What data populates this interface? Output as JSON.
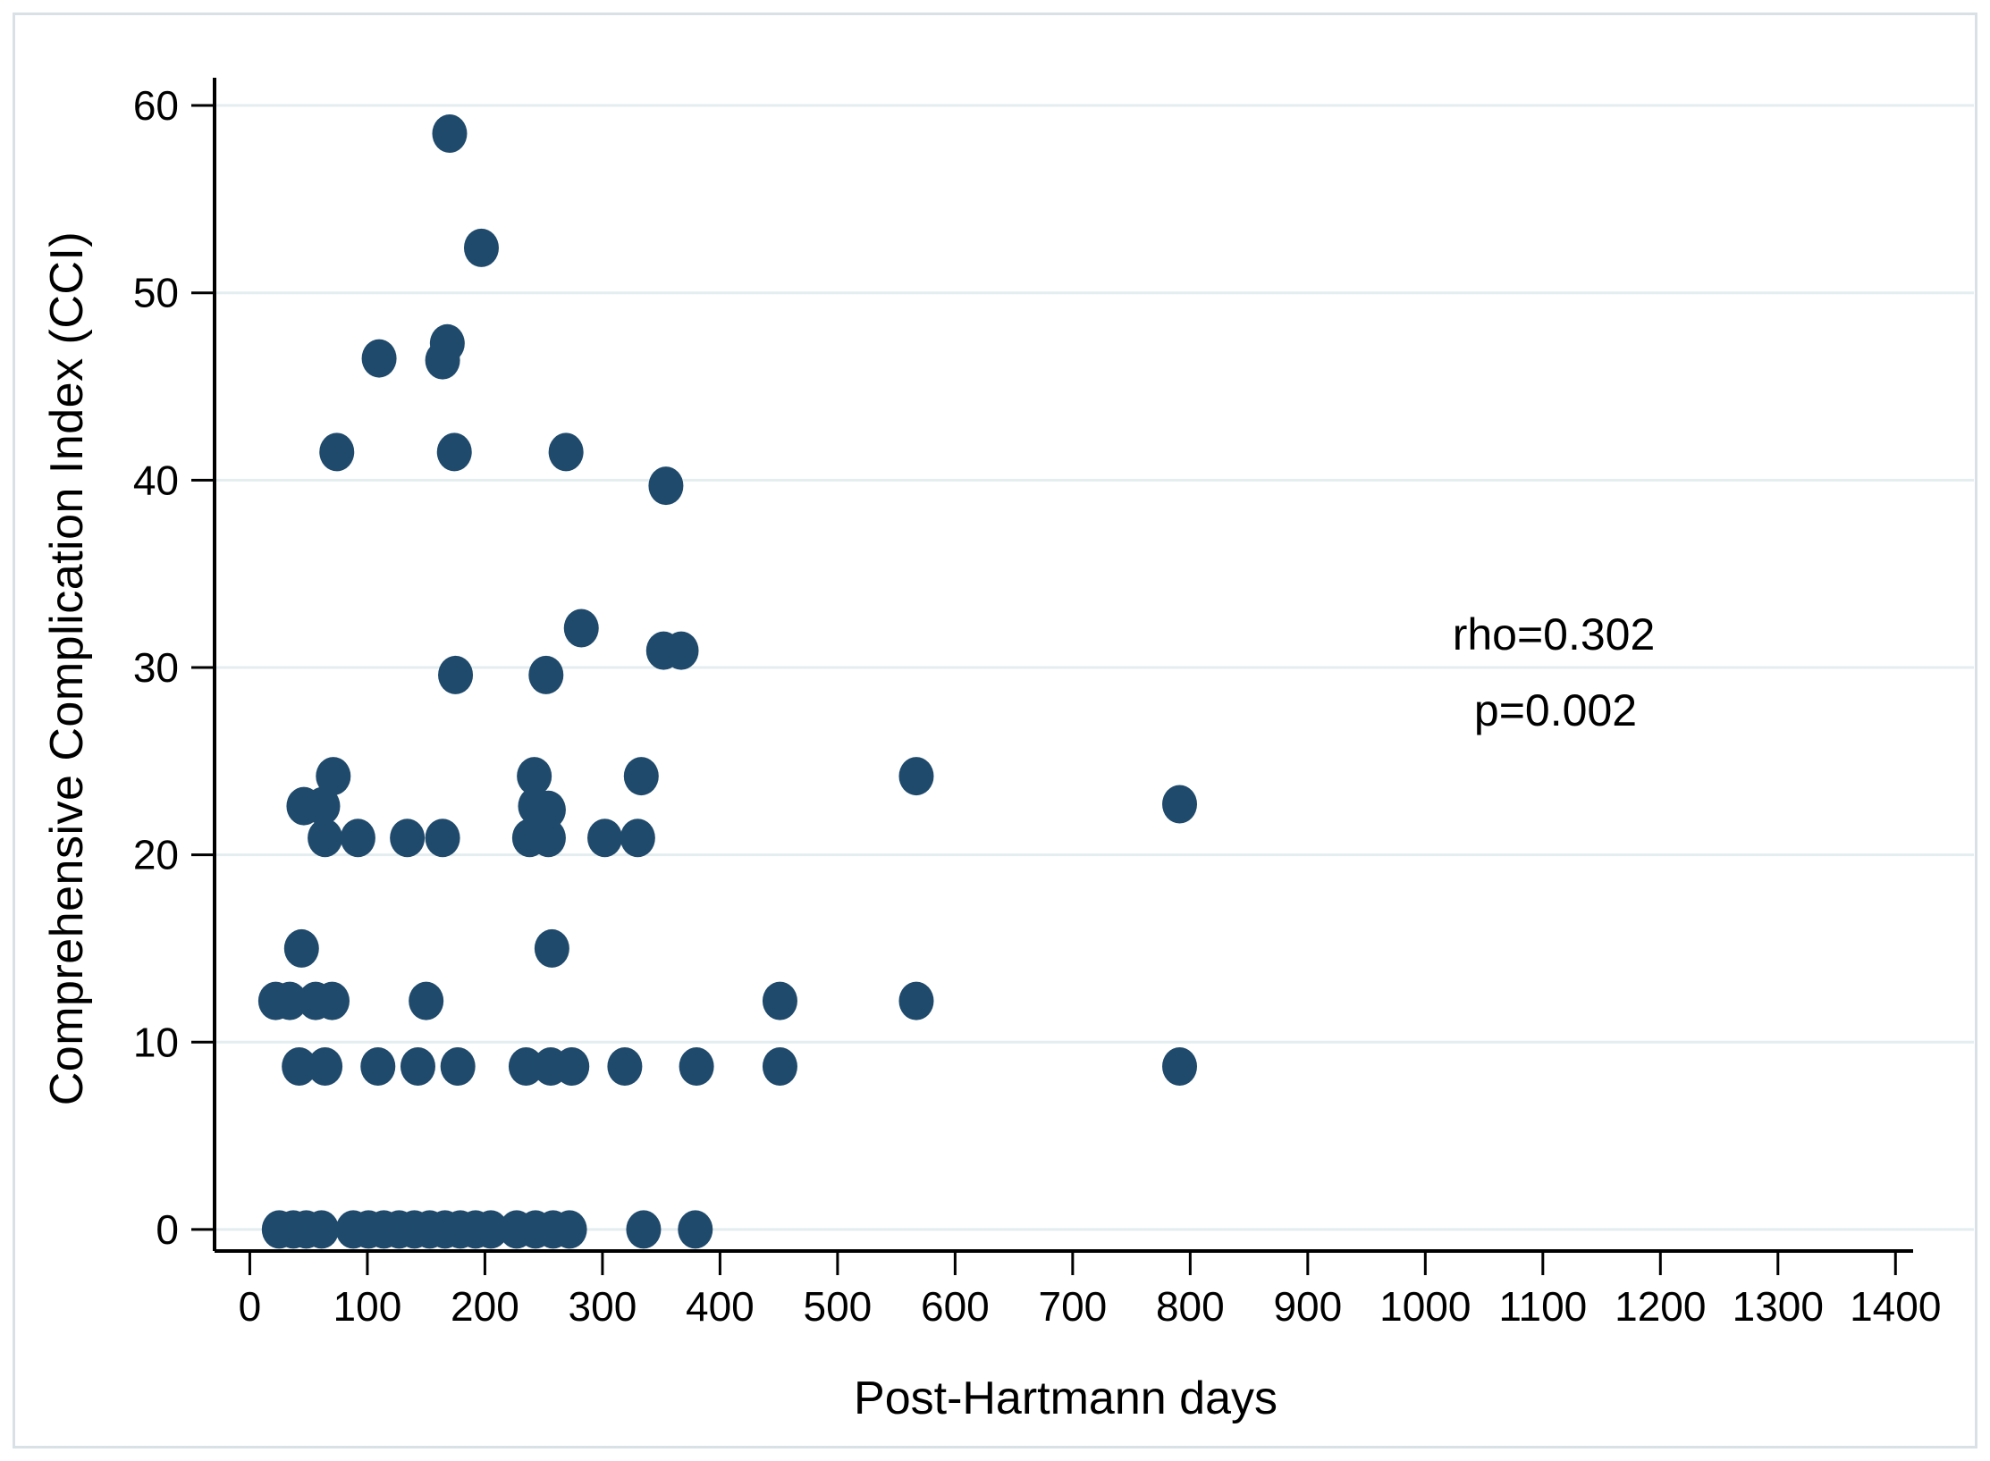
{
  "figure": {
    "background_color": "#ffffff",
    "border_color": "#d9e1e6",
    "axis_color": "#000000",
    "gridline_color": "#e4edef",
    "marker_color": "#1f4a6c"
  },
  "annotations_block": {
    "rho_text": "rho=0.302",
    "p_text": "p=0.002"
  },
  "chart_data": {
    "type": "scatter",
    "title": "",
    "xlabel": "Post-Hartmann days",
    "ylabel": "Comprehensive Complication Index (CCI)",
    "xlim": [
      -30,
      1415
    ],
    "ylim": [
      -1.15,
      61.1
    ],
    "x_ticks": [
      0,
      100,
      200,
      300,
      400,
      500,
      600,
      700,
      800,
      900,
      1000,
      1100,
      1200,
      1300,
      1400
    ],
    "y_ticks": [
      0,
      10,
      20,
      30,
      40,
      50,
      60
    ],
    "grid": "horizontal gridlines only",
    "legend_position": "none",
    "annotations": [
      {
        "text": "rho=0.302",
        "x": 1110,
        "y": 32
      },
      {
        "text": "p=0.002",
        "x": 1112,
        "y": 28
      }
    ],
    "series": [
      {
        "name": "patients",
        "marker": "filled-circle",
        "color": "#1f4a6c",
        "points": [
          [
            25,
            0
          ],
          [
            37,
            0
          ],
          [
            48,
            0
          ],
          [
            61,
            0
          ],
          [
            88,
            0
          ],
          [
            101,
            0
          ],
          [
            114,
            0
          ],
          [
            127,
            0
          ],
          [
            140,
            0
          ],
          [
            153,
            0
          ],
          [
            166,
            0
          ],
          [
            179,
            0
          ],
          [
            192,
            0
          ],
          [
            205,
            0
          ],
          [
            227,
            0
          ],
          [
            243,
            0
          ],
          [
            258,
            0
          ],
          [
            272,
            0
          ],
          [
            335,
            0
          ],
          [
            379,
            0
          ],
          [
            42,
            8.7
          ],
          [
            64,
            8.7
          ],
          [
            109,
            8.7
          ],
          [
            143,
            8.7
          ],
          [
            177,
            8.7
          ],
          [
            235,
            8.7
          ],
          [
            256,
            8.7
          ],
          [
            274,
            8.7
          ],
          [
            319,
            8.7
          ],
          [
            380,
            8.7
          ],
          [
            451,
            8.7
          ],
          [
            791,
            8.7
          ],
          [
            22,
            12.2
          ],
          [
            34,
            12.2
          ],
          [
            56,
            12.2
          ],
          [
            70,
            12.2
          ],
          [
            150,
            12.2
          ],
          [
            451,
            12.2
          ],
          [
            567,
            12.2
          ],
          [
            44,
            15
          ],
          [
            257,
            15
          ],
          [
            64,
            20.9
          ],
          [
            92,
            20.9
          ],
          [
            134,
            20.9
          ],
          [
            164,
            20.9
          ],
          [
            238,
            20.9
          ],
          [
            254,
            20.9
          ],
          [
            302,
            20.9
          ],
          [
            330,
            20.9
          ],
          [
            46,
            22.6
          ],
          [
            62,
            22.6
          ],
          [
            243,
            22.6
          ],
          [
            254,
            22.4
          ],
          [
            791,
            22.7
          ],
          [
            71,
            24.2
          ],
          [
            242,
            24.2
          ],
          [
            333,
            24.2
          ],
          [
            567,
            24.2
          ],
          [
            175,
            29.6
          ],
          [
            252,
            29.6
          ],
          [
            352,
            30.9
          ],
          [
            367,
            30.9
          ],
          [
            282,
            32.1
          ],
          [
            354,
            39.7
          ],
          [
            74,
            41.5
          ],
          [
            174,
            41.5
          ],
          [
            269,
            41.5
          ],
          [
            110,
            46.5
          ],
          [
            164,
            46.4
          ],
          [
            168,
            47.3
          ],
          [
            197,
            52.4
          ],
          [
            170,
            58.5
          ]
        ]
      }
    ]
  }
}
